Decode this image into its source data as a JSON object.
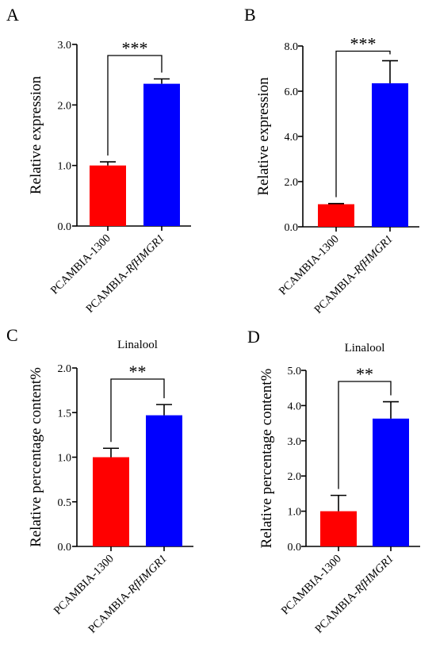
{
  "chart_data": [
    {
      "panel": "A",
      "type": "bar",
      "title": "",
      "ylabel": "Relative expression",
      "xlabel": "",
      "categories": [
        {
          "prefix": "PCAMBIA-1300",
          "italic": ""
        },
        {
          "prefix": "PCAMBIA-",
          "italic": "RfHMGR1"
        }
      ],
      "values": [
        1.0,
        2.35
      ],
      "errors": [
        0.06,
        0.08
      ],
      "colors": [
        "#ff0000",
        "#0000ff"
      ],
      "ylim": [
        0,
        3.0
      ],
      "yticks": [
        0,
        1.0,
        2.0,
        3.0
      ],
      "tick_decimals": 1,
      "significance": "***"
    },
    {
      "panel": "B",
      "type": "bar",
      "title": "",
      "ylabel": "Relative expression",
      "xlabel": "",
      "categories": [
        {
          "prefix": "PCAMBIA-1300",
          "italic": ""
        },
        {
          "prefix": "PCAMBIA-",
          "italic": "RfHMGR1"
        }
      ],
      "values": [
        1.0,
        6.35
      ],
      "errors": [
        0.03,
        1.0
      ],
      "colors": [
        "#ff0000",
        "#0000ff"
      ],
      "ylim": [
        0,
        8.0
      ],
      "yticks": [
        0,
        2.0,
        4.0,
        6.0,
        8.0
      ],
      "tick_decimals": 1,
      "significance": "***"
    },
    {
      "panel": "C",
      "type": "bar",
      "title": "Linalool",
      "ylabel": "Relative percentage content%",
      "xlabel": "",
      "categories": [
        {
          "prefix": "PCAMBIA-1300",
          "italic": ""
        },
        {
          "prefix": "PCAMBIA-",
          "italic": "RfHMGR1"
        }
      ],
      "values": [
        1.0,
        1.47
      ],
      "errors": [
        0.1,
        0.12
      ],
      "colors": [
        "#ff0000",
        "#0000ff"
      ],
      "ylim": [
        0,
        2.0
      ],
      "yticks": [
        0,
        0.5,
        1.0,
        1.5,
        2.0
      ],
      "tick_decimals": 1,
      "significance": "**"
    },
    {
      "panel": "D",
      "type": "bar",
      "title": "Linalool",
      "ylabel": "Relative percentage content%",
      "xlabel": "",
      "categories": [
        {
          "prefix": "PCAMBIA-1300",
          "italic": ""
        },
        {
          "prefix": "PCAMBIA-",
          "italic": "RfHMGR1"
        }
      ],
      "values": [
        1.0,
        3.63
      ],
      "errors": [
        0.45,
        0.48
      ],
      "colors": [
        "#ff0000",
        "#0000ff"
      ],
      "ylim": [
        0,
        5.0
      ],
      "yticks": [
        0,
        1.0,
        2.0,
        3.0,
        4.0,
        5.0
      ],
      "tick_decimals": 1,
      "significance": "**"
    }
  ]
}
